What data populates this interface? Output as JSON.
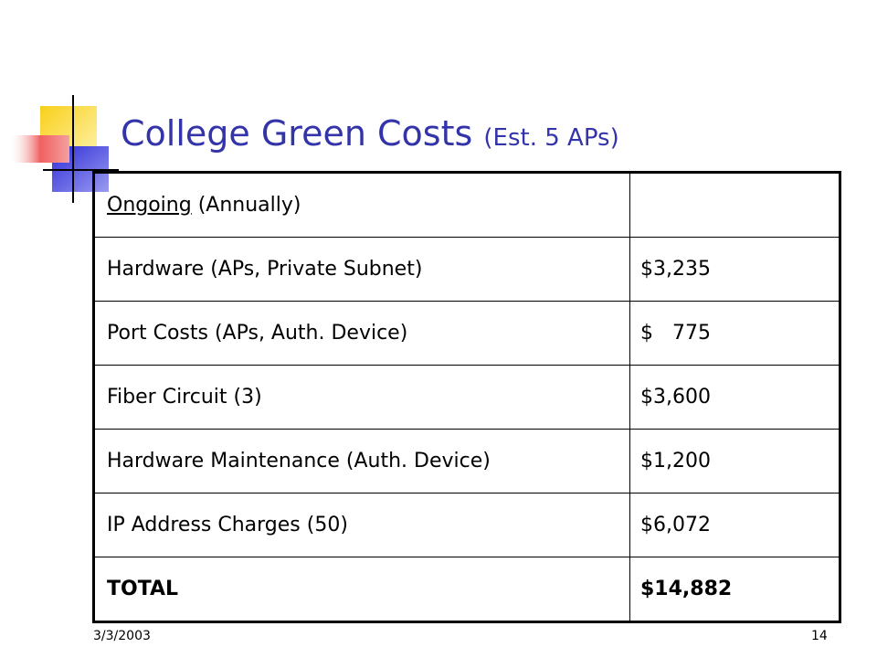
{
  "slide": {
    "title_main": "College Green Costs",
    "title_sub": "(Est. 5 APs)",
    "date": "3/3/2003",
    "page_number": "14"
  },
  "table": {
    "header": {
      "label_underlined": "Ongoing",
      "label_rest": " (Annually)",
      "value": ""
    },
    "rows": [
      {
        "item": "Hardware (APs, Private Subnet)",
        "amount": "$3,235"
      },
      {
        "item": "Port Costs (APs, Auth. Device)",
        "amount": "$   775"
      },
      {
        "item": "Fiber Circuit (3)",
        "amount": "$3,600"
      },
      {
        "item": "Hardware Maintenance (Auth. Device)",
        "amount": "$1,200"
      },
      {
        "item": "IP Address Charges (50)",
        "amount": "$6,072"
      }
    ],
    "total": {
      "item": "TOTAL",
      "amount": "$14,882"
    }
  },
  "colors": {
    "title": "#3333aa",
    "deco_yellow": "#f8d01a",
    "deco_blue": "#2e2ed8",
    "deco_red": "#f06060"
  }
}
